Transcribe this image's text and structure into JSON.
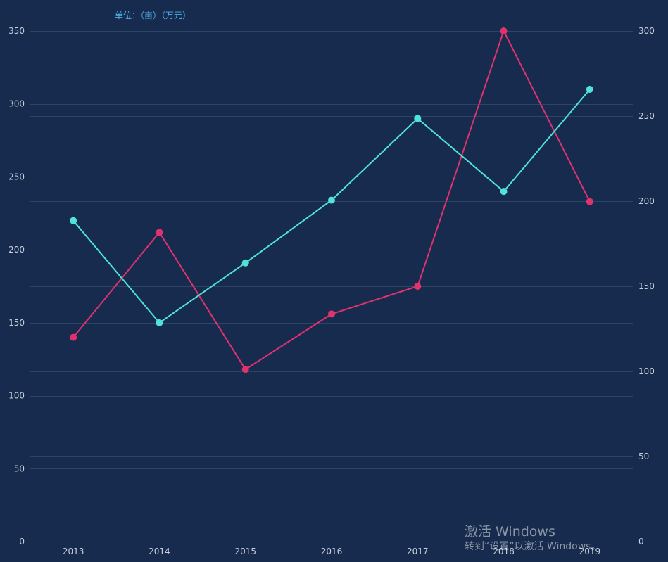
{
  "unit_text": "单位：（亩）（万元）",
  "watermark": {
    "title": "激活 Windows",
    "subtitle": "转到“设置”以激活 Windows。"
  },
  "chart_data": {
    "type": "line",
    "x": [
      "2013",
      "2014",
      "2015",
      "2016",
      "2017",
      "2018",
      "2019"
    ],
    "y_left": {
      "ticks": [
        0,
        50,
        100,
        150,
        200,
        250,
        300,
        350
      ],
      "ylim": [
        0,
        350
      ]
    },
    "y_right": {
      "ticks": [
        0,
        50,
        100,
        150,
        200,
        250,
        300
      ],
      "ylim": [
        0,
        300
      ]
    },
    "grid": true,
    "series": [
      {
        "axis": "left",
        "color": "#e0326e",
        "values": [
          140,
          212,
          118,
          156,
          175,
          350,
          233
        ]
      },
      {
        "axis": "left",
        "color": "#50e3d8",
        "values": [
          220,
          150,
          191,
          234,
          290,
          240,
          310
        ]
      }
    ],
    "colors": {
      "background": "#162b4d",
      "grid": "#2c4566",
      "axis": "#ffffff",
      "tick_text": "#c8d0dc",
      "unit_text": "#4fb0e8"
    }
  }
}
